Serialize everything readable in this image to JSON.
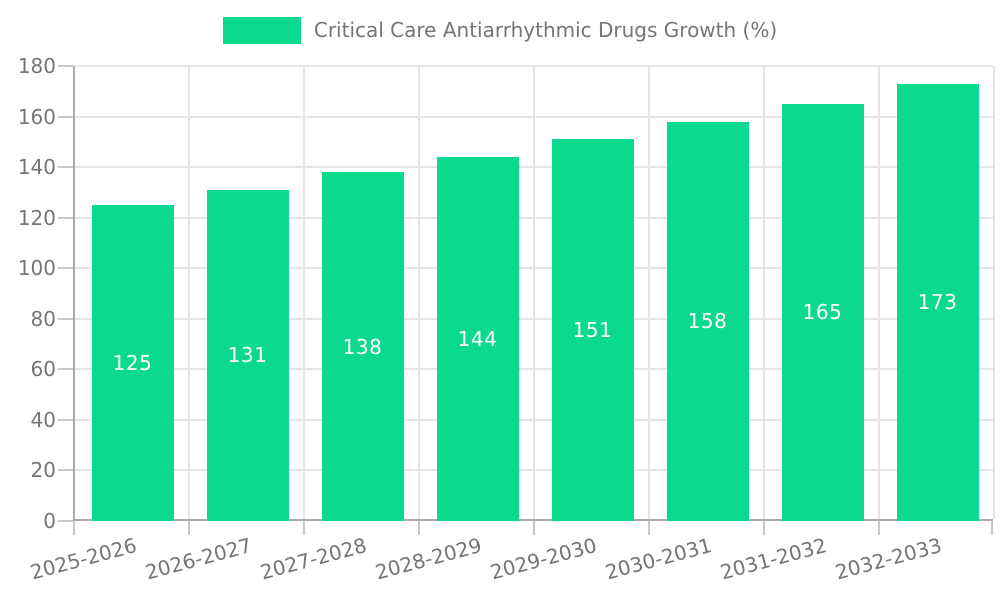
{
  "legend": {
    "label": "Critical Care Antiarrhythmic Drugs Growth (%)"
  },
  "colors": {
    "bar": "#0bd98d",
    "axis_text": "#757575",
    "grid": "#e4e4e4",
    "axis_line": "#acacac",
    "tick": "#c9c9c9",
    "value_label": "#ffffff",
    "background": "#ffffff"
  },
  "chart_data": {
    "type": "bar",
    "title": "Critical Care Antiarrhythmic Drugs Growth (%)",
    "categories": [
      "2025-2026",
      "2026-2027",
      "2027-2028",
      "2028-2029",
      "2029-2030",
      "2030-2031",
      "2031-2032",
      "2032-2033"
    ],
    "values": [
      125,
      131,
      138,
      144,
      151,
      158,
      165,
      173
    ],
    "bar_value_labels": [
      "125",
      "131",
      "138",
      "144",
      "151",
      "158",
      "165",
      "173"
    ],
    "xlabel": "",
    "ylabel": "",
    "ylim": [
      0,
      180
    ],
    "yticks": [
      0,
      20,
      40,
      60,
      80,
      100,
      120,
      140,
      160,
      180
    ],
    "grid": true,
    "legend_position": "top",
    "x_tick_rotation_deg": -15
  }
}
